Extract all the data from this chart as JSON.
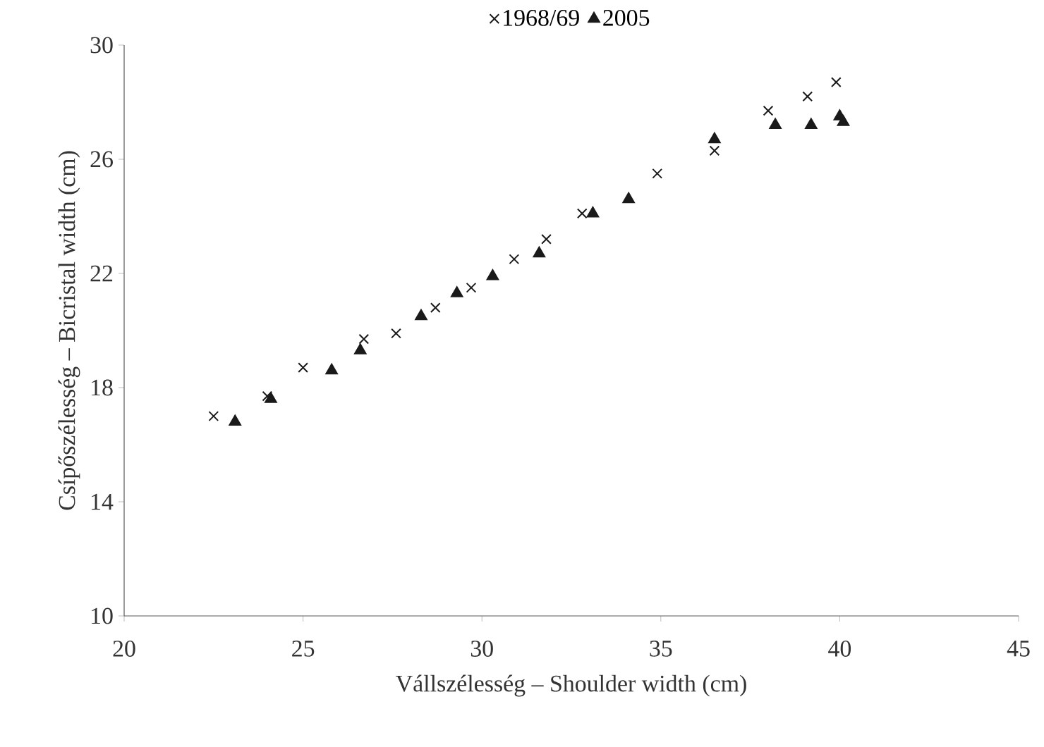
{
  "chart_data": {
    "type": "scatter",
    "xlabel": "Vállszélesség – Shoulder width (cm)",
    "ylabel": "Csípőszélesség – Bicristal width (cm)",
    "xlim": [
      20,
      45
    ],
    "xticks": [
      20,
      25,
      30,
      35,
      40,
      45
    ],
    "ylim": [
      10,
      30
    ],
    "yticks": [
      10,
      14,
      18,
      22,
      26,
      30
    ],
    "legend": "top",
    "grid": false,
    "series": [
      {
        "name": "1968/69",
        "color": "#1a1a1a",
        "marker": "cross",
        "x": [
          22.5,
          24.0,
          25.0,
          26.7,
          27.6,
          28.7,
          29.7,
          30.9,
          31.8,
          32.8,
          34.9,
          36.5,
          38.0,
          39.1,
          39.9
        ],
        "values": [
          17.0,
          17.7,
          18.7,
          19.7,
          19.9,
          20.8,
          21.5,
          22.5,
          23.2,
          24.1,
          25.5,
          26.3,
          27.7,
          28.2,
          28.7
        ]
      },
      {
        "name": "2005",
        "color": "#1a1a1a",
        "marker": "triangle",
        "x": [
          23.1,
          24.1,
          25.8,
          26.6,
          28.3,
          29.3,
          30.3,
          31.6,
          33.1,
          34.1,
          36.5,
          38.2,
          39.2,
          40.0,
          40.1
        ],
        "values": [
          16.8,
          17.6,
          18.6,
          19.3,
          20.5,
          21.3,
          21.9,
          22.7,
          24.1,
          24.6,
          26.7,
          27.2,
          27.2,
          27.5,
          27.3
        ]
      }
    ]
  }
}
